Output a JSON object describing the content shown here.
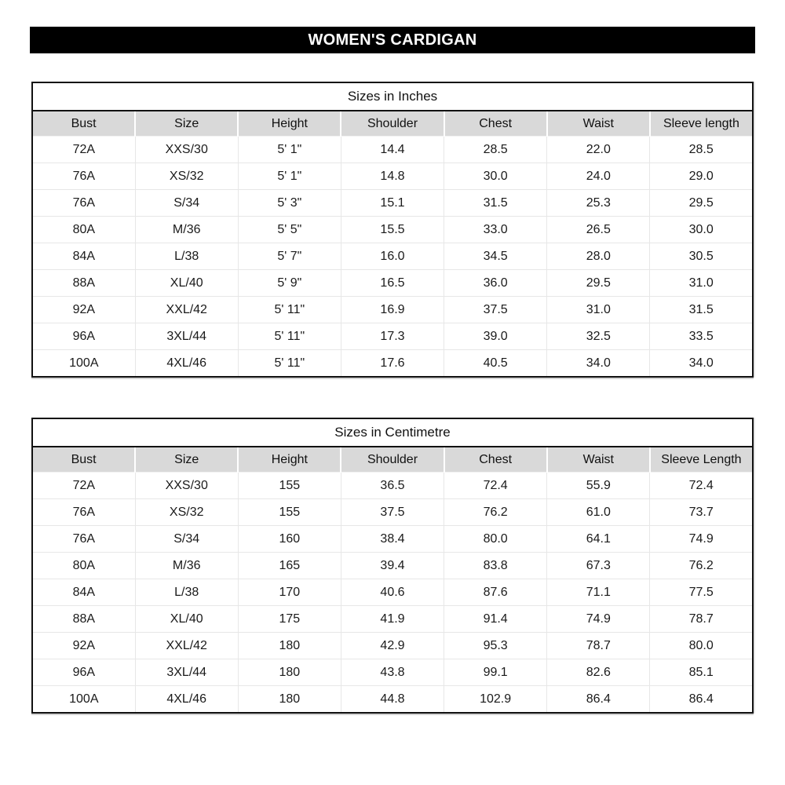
{
  "title_bar": {
    "label": "WOMEN'S CARDIGAN",
    "bg_color": "#000000",
    "text_color": "#ffffff"
  },
  "colors": {
    "header_row_bg": "#d9d9d9",
    "table_border": "#111111",
    "gridline": "#e7e7e7",
    "body_text": "#1a1a1a"
  },
  "tables": [
    {
      "title": "Sizes in Inches",
      "columns": [
        "Bust",
        "Size",
        "Height",
        "Shoulder",
        "Chest",
        "Waist",
        "Sleeve length"
      ],
      "rows": [
        [
          "72A",
          "XXS/30",
          "5' 1\"",
          "14.4",
          "28.5",
          "22.0",
          "28.5"
        ],
        [
          "76A",
          "XS/32",
          "5' 1\"",
          "14.8",
          "30.0",
          "24.0",
          "29.0"
        ],
        [
          "76A",
          "S/34",
          "5' 3\"",
          "15.1",
          "31.5",
          "25.3",
          "29.5"
        ],
        [
          "80A",
          "M/36",
          "5' 5\"",
          "15.5",
          "33.0",
          "26.5",
          "30.0"
        ],
        [
          "84A",
          "L/38",
          "5' 7\"",
          "16.0",
          "34.5",
          "28.0",
          "30.5"
        ],
        [
          "88A",
          "XL/40",
          "5' 9\"",
          "16.5",
          "36.0",
          "29.5",
          "31.0"
        ],
        [
          "92A",
          "XXL/42",
          "5' 11\"",
          "16.9",
          "37.5",
          "31.0",
          "31.5"
        ],
        [
          "96A",
          "3XL/44",
          "5' 11\"",
          "17.3",
          "39.0",
          "32.5",
          "33.5"
        ],
        [
          "100A",
          "4XL/46",
          "5' 11\"",
          "17.6",
          "40.5",
          "34.0",
          "34.0"
        ]
      ]
    },
    {
      "title": "Sizes in Centimetre",
      "columns": [
        "Bust",
        "Size",
        "Height",
        "Shoulder",
        "Chest",
        "Waist",
        "Sleeve Length"
      ],
      "rows": [
        [
          "72A",
          "XXS/30",
          "155",
          "36.5",
          "72.4",
          "55.9",
          "72.4"
        ],
        [
          "76A",
          "XS/32",
          "155",
          "37.5",
          "76.2",
          "61.0",
          "73.7"
        ],
        [
          "76A",
          "S/34",
          "160",
          "38.4",
          "80.0",
          "64.1",
          "74.9"
        ],
        [
          "80A",
          "M/36",
          "165",
          "39.4",
          "83.8",
          "67.3",
          "76.2"
        ],
        [
          "84A",
          "L/38",
          "170",
          "40.6",
          "87.6",
          "71.1",
          "77.5"
        ],
        [
          "88A",
          "XL/40",
          "175",
          "41.9",
          "91.4",
          "74.9",
          "78.7"
        ],
        [
          "92A",
          "XXL/42",
          "180",
          "42.9",
          "95.3",
          "78.7",
          "80.0"
        ],
        [
          "96A",
          "3XL/44",
          "180",
          "43.8",
          "99.1",
          "82.6",
          "85.1"
        ],
        [
          "100A",
          "4XL/46",
          "180",
          "44.8",
          "102.9",
          "86.4",
          "86.4"
        ]
      ]
    }
  ]
}
